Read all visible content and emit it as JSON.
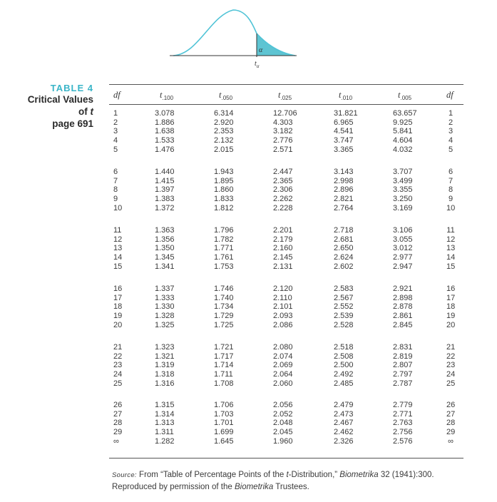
{
  "figure": {
    "alpha_label": "α",
    "t_label": "t",
    "t_sub": "α"
  },
  "sidebar": {
    "table_label": "TABLE 4",
    "title_line1": "Critical Values",
    "title_line2": "of",
    "title_var": "t",
    "title_line3": "page 691"
  },
  "headers": {
    "df_left": "df",
    "t_var": "t",
    "subs": [
      ".100",
      ".050",
      ".025",
      ".010",
      ".005"
    ],
    "df_right": "df"
  },
  "groups": [
    {
      "rows": [
        {
          "df": "1",
          "vals": [
            "3.078",
            "6.314",
            "12.706",
            "31.821",
            "63.657"
          ]
        },
        {
          "df": "2",
          "vals": [
            "1.886",
            "2.920",
            "4.303",
            "6.965",
            "9.925"
          ]
        },
        {
          "df": "3",
          "vals": [
            "1.638",
            "2.353",
            "3.182",
            "4.541",
            "5.841"
          ]
        },
        {
          "df": "4",
          "vals": [
            "1.533",
            "2.132",
            "2.776",
            "3.747",
            "4.604"
          ]
        },
        {
          "df": "5",
          "vals": [
            "1.476",
            "2.015",
            "2.571",
            "3.365",
            "4.032"
          ]
        }
      ]
    },
    {
      "rows": [
        {
          "df": "6",
          "vals": [
            "1.440",
            "1.943",
            "2.447",
            "3.143",
            "3.707"
          ]
        },
        {
          "df": "7",
          "vals": [
            "1.415",
            "1.895",
            "2.365",
            "2.998",
            "3.499"
          ]
        },
        {
          "df": "8",
          "vals": [
            "1.397",
            "1.860",
            "2.306",
            "2.896",
            "3.355"
          ]
        },
        {
          "df": "9",
          "vals": [
            "1.383",
            "1.833",
            "2.262",
            "2.821",
            "3.250"
          ]
        },
        {
          "df": "10",
          "vals": [
            "1.372",
            "1.812",
            "2.228",
            "2.764",
            "3.169"
          ]
        }
      ]
    },
    {
      "rows": [
        {
          "df": "11",
          "vals": [
            "1.363",
            "1.796",
            "2.201",
            "2.718",
            "3.106"
          ]
        },
        {
          "df": "12",
          "vals": [
            "1.356",
            "1.782",
            "2.179",
            "2.681",
            "3.055"
          ]
        },
        {
          "df": "13",
          "vals": [
            "1.350",
            "1.771",
            "2.160",
            "2.650",
            "3.012"
          ]
        },
        {
          "df": "14",
          "vals": [
            "1.345",
            "1.761",
            "2.145",
            "2.624",
            "2.977"
          ]
        },
        {
          "df": "15",
          "vals": [
            "1.341",
            "1.753",
            "2.131",
            "2.602",
            "2.947"
          ]
        }
      ]
    },
    {
      "rows": [
        {
          "df": "16",
          "vals": [
            "1.337",
            "1.746",
            "2.120",
            "2.583",
            "2.921"
          ]
        },
        {
          "df": "17",
          "vals": [
            "1.333",
            "1.740",
            "2.110",
            "2.567",
            "2.898"
          ]
        },
        {
          "df": "18",
          "vals": [
            "1.330",
            "1.734",
            "2.101",
            "2.552",
            "2.878"
          ]
        },
        {
          "df": "19",
          "vals": [
            "1.328",
            "1.729",
            "2.093",
            "2.539",
            "2.861"
          ]
        },
        {
          "df": "20",
          "vals": [
            "1.325",
            "1.725",
            "2.086",
            "2.528",
            "2.845"
          ]
        }
      ]
    },
    {
      "rows": [
        {
          "df": "21",
          "vals": [
            "1.323",
            "1.721",
            "2.080",
            "2.518",
            "2.831"
          ]
        },
        {
          "df": "22",
          "vals": [
            "1.321",
            "1.717",
            "2.074",
            "2.508",
            "2.819"
          ]
        },
        {
          "df": "23",
          "vals": [
            "1.319",
            "1.714",
            "2.069",
            "2.500",
            "2.807"
          ]
        },
        {
          "df": "24",
          "vals": [
            "1.318",
            "1.711",
            "2.064",
            "2.492",
            "2.797"
          ]
        },
        {
          "df": "25",
          "vals": [
            "1.316",
            "1.708",
            "2.060",
            "2.485",
            "2.787"
          ]
        }
      ]
    },
    {
      "rows": [
        {
          "df": "26",
          "vals": [
            "1.315",
            "1.706",
            "2.056",
            "2.479",
            "2.779"
          ]
        },
        {
          "df": "27",
          "vals": [
            "1.314",
            "1.703",
            "2.052",
            "2.473",
            "2.771"
          ]
        },
        {
          "df": "28",
          "vals": [
            "1.313",
            "1.701",
            "2.048",
            "2.467",
            "2.763"
          ]
        },
        {
          "df": "29",
          "vals": [
            "1.311",
            "1.699",
            "2.045",
            "2.462",
            "2.756"
          ]
        },
        {
          "df": "∞",
          "vals": [
            "1.282",
            "1.645",
            "1.960",
            "2.326",
            "2.576"
          ]
        }
      ]
    }
  ],
  "source": {
    "label": "Source:",
    "text1": " From “Table of Percentage Points of the ",
    "t_var": "t",
    "text2": "-Distribution,” ",
    "journal": "Biometrika",
    "text3": " 32 (1941):300.",
    "line2a": "Reproduced by permission of the ",
    "journal2": "Biometrika",
    "line2b": " Trustees."
  },
  "colors": {
    "accent": "#3ab5c8",
    "curve": "#4fc3d6",
    "shade": "#5ec4d2"
  }
}
